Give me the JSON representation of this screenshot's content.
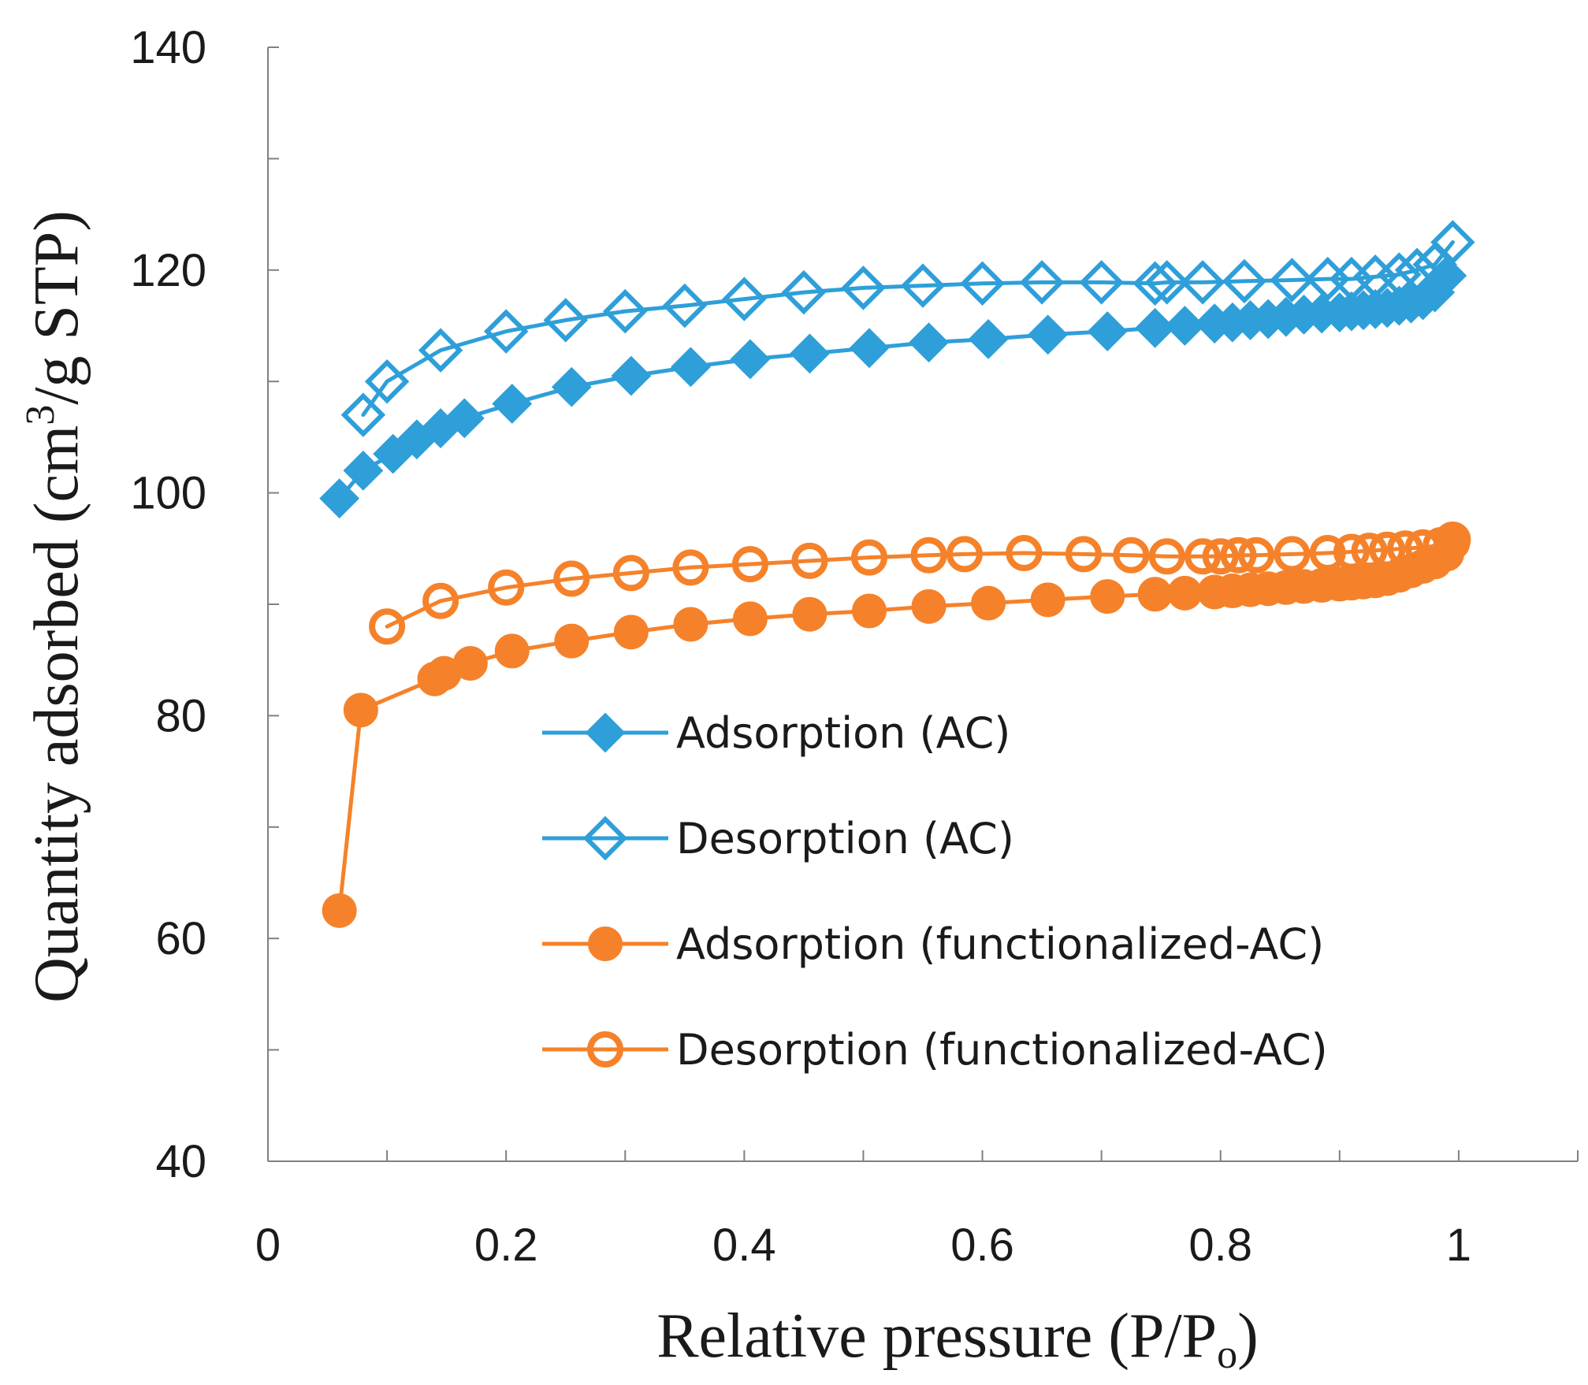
{
  "chart_data": {
    "type": "scatter",
    "xlabel": {
      "main": "Relative pressure (P/P",
      "sub": "o",
      "close": ")"
    },
    "ylabel": {
      "main": "Quantity adsorbed (cm",
      "sup": "3",
      "rest": "/g STP)"
    },
    "xlim": [
      0,
      1.1
    ],
    "ylim": [
      40,
      140
    ],
    "x_ticks": [
      0,
      0.2,
      0.4,
      0.6,
      0.8,
      1
    ],
    "x_tick_labels": [
      "0",
      "0.2",
      "0.4",
      "0.6",
      "0.8",
      "1"
    ],
    "x_minor_ticks": [
      0.1,
      0.3,
      0.5,
      0.7,
      0.9,
      1.1
    ],
    "y_ticks": [
      40,
      60,
      80,
      100,
      120,
      140
    ],
    "y_tick_labels": [
      "40",
      "60",
      "80",
      "100",
      "120",
      "140"
    ],
    "y_minor_ticks": [
      50,
      70,
      90,
      110,
      130
    ],
    "grid": false,
    "legend_position": "center-right",
    "series": [
      {
        "name": "Adsorption (AC)",
        "color": "#2e9fd9",
        "marker": "diamond-filled",
        "x": [
          0.06,
          0.08,
          0.105,
          0.125,
          0.145,
          0.165,
          0.205,
          0.255,
          0.305,
          0.355,
          0.405,
          0.455,
          0.505,
          0.555,
          0.605,
          0.655,
          0.705,
          0.745,
          0.77,
          0.795,
          0.81,
          0.825,
          0.84,
          0.855,
          0.87,
          0.885,
          0.9,
          0.91,
          0.92,
          0.93,
          0.94,
          0.95,
          0.96,
          0.97,
          0.98,
          0.99
        ],
        "y": [
          99.5,
          102,
          103.5,
          104.8,
          105.8,
          106.7,
          108,
          109.5,
          110.5,
          111.3,
          112,
          112.5,
          113,
          113.5,
          113.8,
          114.2,
          114.5,
          114.8,
          115,
          115.2,
          115.3,
          115.5,
          115.6,
          115.8,
          116,
          116.1,
          116.2,
          116.3,
          116.4,
          116.5,
          116.6,
          116.8,
          117,
          117.3,
          118,
          119.5
        ]
      },
      {
        "name": "Desorption (AC)",
        "color": "#2e9fd9",
        "marker": "diamond-open",
        "x": [
          0.995,
          0.98,
          0.965,
          0.95,
          0.93,
          0.91,
          0.89,
          0.86,
          0.82,
          0.785,
          0.755,
          0.745,
          0.7,
          0.65,
          0.6,
          0.55,
          0.5,
          0.45,
          0.4,
          0.35,
          0.3,
          0.25,
          0.2,
          0.145,
          0.1,
          0.08
        ],
        "y": [
          122.5,
          120.5,
          120,
          119.6,
          119.4,
          119.2,
          119.2,
          119.1,
          119,
          118.9,
          118.9,
          118.8,
          118.9,
          118.9,
          118.8,
          118.6,
          118.4,
          118,
          117.4,
          116.8,
          116.3,
          115.5,
          114.5,
          112.8,
          110,
          107
        ]
      },
      {
        "name": "Adsorption (functionalized-AC)",
        "color": "#f5822a",
        "marker": "circle-filled",
        "x": [
          0.06,
          0.078,
          0.14,
          0.148,
          0.17,
          0.205,
          0.255,
          0.305,
          0.355,
          0.405,
          0.455,
          0.505,
          0.555,
          0.605,
          0.655,
          0.705,
          0.745,
          0.77,
          0.795,
          0.81,
          0.825,
          0.84,
          0.855,
          0.87,
          0.885,
          0.9,
          0.91,
          0.92,
          0.93,
          0.94,
          0.95,
          0.96,
          0.97,
          0.98,
          0.99,
          0.995
        ],
        "y": [
          62.5,
          80.5,
          83.3,
          83.8,
          84.7,
          85.8,
          86.7,
          87.5,
          88.2,
          88.7,
          89.1,
          89.4,
          89.8,
          90.1,
          90.4,
          90.7,
          90.9,
          91,
          91.1,
          91.2,
          91.3,
          91.4,
          91.5,
          91.6,
          91.7,
          91.8,
          91.9,
          92,
          92.1,
          92.3,
          92.6,
          93,
          93.4,
          93.8,
          94.5,
          95.5
        ]
      },
      {
        "name": "Desorption (functionalized-AC)",
        "color": "#f5822a",
        "marker": "circle-open",
        "x": [
          0.995,
          0.985,
          0.97,
          0.955,
          0.94,
          0.925,
          0.91,
          0.89,
          0.86,
          0.83,
          0.815,
          0.8,
          0.785,
          0.755,
          0.725,
          0.685,
          0.635,
          0.585,
          0.555,
          0.505,
          0.455,
          0.405,
          0.355,
          0.305,
          0.255,
          0.2,
          0.145,
          0.1
        ],
        "y": [
          95.8,
          95.3,
          95.1,
          95,
          94.9,
          94.8,
          94.7,
          94.6,
          94.5,
          94.4,
          94.4,
          94.3,
          94.3,
          94.3,
          94.4,
          94.5,
          94.6,
          94.5,
          94.4,
          94.2,
          93.9,
          93.6,
          93.3,
          92.8,
          92.3,
          91.5,
          90.3,
          88
        ]
      }
    ]
  }
}
